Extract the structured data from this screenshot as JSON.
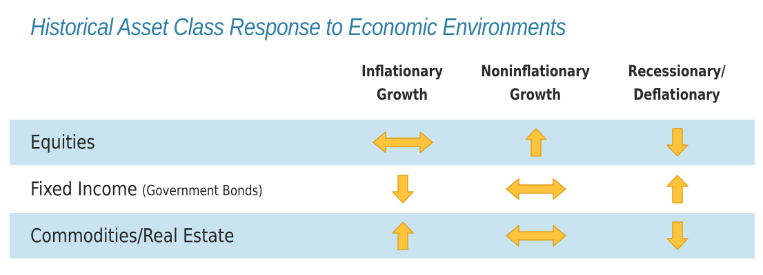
{
  "title": "Historical Asset Class Response to Economic Environments",
  "columns": [
    {
      "line1": "Inflationary",
      "line2": "Growth"
    },
    {
      "line1": "Noninflationary",
      "line2": "Growth"
    },
    {
      "line1": "Recessionary/",
      "line2": "Deflationary"
    }
  ],
  "rows": [
    {
      "label": "Equities",
      "note": "",
      "responses": [
        "sideways",
        "up",
        "down"
      ]
    },
    {
      "label": "Fixed Income",
      "note": "(Government Bonds)",
      "responses": [
        "down",
        "sideways",
        "up"
      ]
    },
    {
      "label": "Commodities/Real Estate",
      "note": "",
      "responses": [
        "up",
        "sideways",
        "down"
      ]
    }
  ],
  "colors": {
    "title": "#2c7fa5",
    "band": "#c9e4f0",
    "arrow": "#ffc33c",
    "arrow_outline": "#e0a21e"
  }
}
